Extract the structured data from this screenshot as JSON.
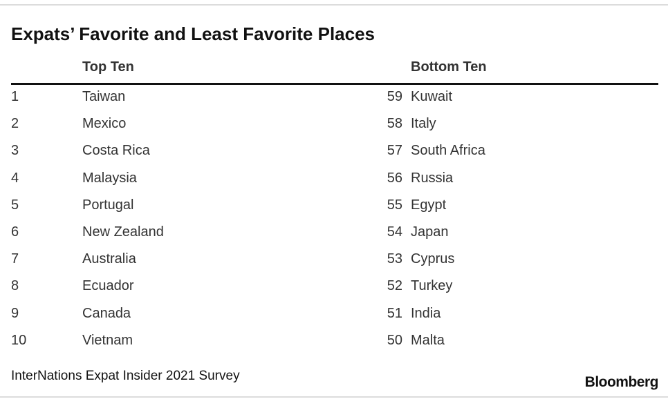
{
  "title": "Expats’ Favorite and Least Favorite Places",
  "chart_data": {
    "type": "table",
    "title": "Expats’ Favorite and Least Favorite Places",
    "columns": [
      "Top Ten",
      "Bottom Ten"
    ],
    "top_ten": [
      {
        "rank": "1",
        "country": "Taiwan"
      },
      {
        "rank": "2",
        "country": "Mexico"
      },
      {
        "rank": "3",
        "country": "Costa Rica"
      },
      {
        "rank": "4",
        "country": "Malaysia"
      },
      {
        "rank": "5",
        "country": "Portugal"
      },
      {
        "rank": "6",
        "country": "New Zealand"
      },
      {
        "rank": "7",
        "country": "Australia"
      },
      {
        "rank": "8",
        "country": "Ecuador"
      },
      {
        "rank": "9",
        "country": "Canada"
      },
      {
        "rank": "10",
        "country": "Vietnam"
      }
    ],
    "bottom_ten": [
      {
        "rank": "59",
        "country": "Kuwait"
      },
      {
        "rank": "58",
        "country": "Italy"
      },
      {
        "rank": "57",
        "country": "South Africa"
      },
      {
        "rank": "56",
        "country": "Russia"
      },
      {
        "rank": "55",
        "country": "Egypt"
      },
      {
        "rank": "54",
        "country": "Japan"
      },
      {
        "rank": "53",
        "country": "Cyprus"
      },
      {
        "rank": "52",
        "country": "Turkey"
      },
      {
        "rank": "51",
        "country": "India"
      },
      {
        "rank": "50",
        "country": "Malta"
      }
    ]
  },
  "source": "InterNations Expat Insider 2021 Survey",
  "brand": "Bloomberg",
  "colors": {
    "text": "#333333",
    "title": "#111111",
    "rule": "#111111",
    "border": "#dcdcdc"
  }
}
